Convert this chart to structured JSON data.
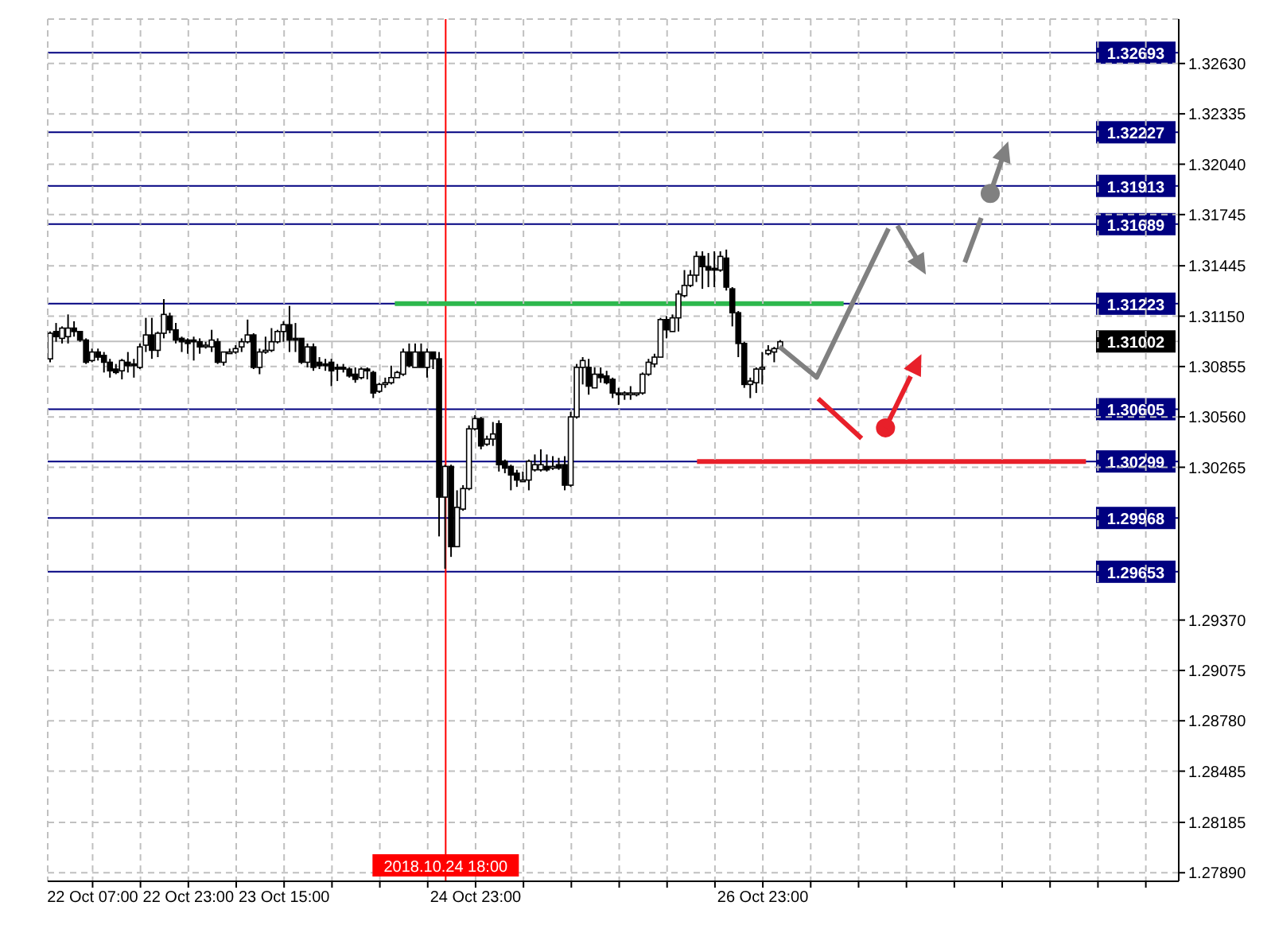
{
  "chart_data": {
    "type": "candlestick",
    "color": "#000000",
    "x": [
      "2018-10-22T00:00",
      "2018-10-22T01:00",
      "2018-10-22T02:00",
      "2018-10-22T03:00",
      "2018-10-22T04:00",
      "2018-10-22T05:00",
      "2018-10-22T06:00",
      "2018-10-22T07:00",
      "2018-10-22T08:00",
      "2018-10-22T09:00",
      "2018-10-22T10:00",
      "2018-10-22T11:00",
      "2018-10-22T12:00",
      "2018-10-22T13:00",
      "2018-10-22T14:00",
      "2018-10-22T15:00",
      "2018-10-22T16:00",
      "2018-10-22T17:00",
      "2018-10-22T18:00",
      "2018-10-22T19:00",
      "2018-10-22T20:00",
      "2018-10-22T21:00",
      "2018-10-22T22:00",
      "2018-10-22T23:00",
      "2018-10-23T00:00",
      "2018-10-23T01:00",
      "2018-10-23T02:00",
      "2018-10-23T03:00",
      "2018-10-23T04:00",
      "2018-10-23T05:00",
      "2018-10-23T06:00",
      "2018-10-23T07:00",
      "2018-10-23T08:00",
      "2018-10-23T09:00",
      "2018-10-23T10:00",
      "2018-10-23T11:00",
      "2018-10-23T12:00",
      "2018-10-23T13:00",
      "2018-10-23T14:00",
      "2018-10-23T15:00",
      "2018-10-23T16:00",
      "2018-10-23T17:00",
      "2018-10-23T18:00",
      "2018-10-23T19:00",
      "2018-10-23T20:00",
      "2018-10-23T21:00",
      "2018-10-23T22:00",
      "2018-10-23T23:00",
      "2018-10-24T00:00",
      "2018-10-24T01:00",
      "2018-10-24T02:00",
      "2018-10-24T03:00",
      "2018-10-24T04:00",
      "2018-10-24T05:00",
      "2018-10-24T06:00",
      "2018-10-24T07:00",
      "2018-10-24T08:00",
      "2018-10-24T09:00",
      "2018-10-24T10:00",
      "2018-10-24T11:00",
      "2018-10-24T12:00",
      "2018-10-24T13:00",
      "2018-10-24T14:00",
      "2018-10-24T15:00",
      "2018-10-24T16:00",
      "2018-10-24T17:00",
      "2018-10-24T18:00",
      "2018-10-24T19:00",
      "2018-10-24T20:00",
      "2018-10-24T21:00",
      "2018-10-24T22:00",
      "2018-10-24T23:00",
      "2018-10-25T00:00",
      "2018-10-25T01:00",
      "2018-10-25T02:00",
      "2018-10-25T03:00",
      "2018-10-25T04:00",
      "2018-10-25T05:00",
      "2018-10-25T06:00",
      "2018-10-25T07:00",
      "2018-10-25T08:00",
      "2018-10-25T09:00",
      "2018-10-25T10:00",
      "2018-10-25T11:00",
      "2018-10-25T12:00",
      "2018-10-25T13:00",
      "2018-10-25T14:00",
      "2018-10-25T15:00",
      "2018-10-25T16:00",
      "2018-10-25T17:00",
      "2018-10-25T18:00",
      "2018-10-25T19:00",
      "2018-10-25T20:00",
      "2018-10-25T21:00",
      "2018-10-25T22:00",
      "2018-10-25T23:00",
      "2018-10-26T00:00",
      "2018-10-26T01:00",
      "2018-10-26T02:00",
      "2018-10-26T03:00",
      "2018-10-26T04:00",
      "2018-10-26T05:00",
      "2018-10-26T06:00",
      "2018-10-26T07:00",
      "2018-10-26T08:00",
      "2018-10-26T09:00",
      "2018-10-26T10:00",
      "2018-10-26T11:00",
      "2018-10-26T12:00",
      "2018-10-26T13:00",
      "2018-10-26T14:00",
      "2018-10-26T15:00",
      "2018-10-26T16:00",
      "2018-10-26T17:00",
      "2018-10-26T18:00",
      "2018-10-26T19:00",
      "2018-10-26T20:00",
      "2018-10-26T21:00",
      "2018-10-26T22:00",
      "2018-10-26T23:00",
      "2018-10-27T00:00",
      "2018-10-27T01:00",
      "2018-10-27T02:00"
    ],
    "ohlc": [
      [
        1.309,
        1.3106,
        1.3088,
        1.3105
      ],
      [
        1.3106,
        1.3111,
        1.31,
        1.3103
      ],
      [
        1.3102,
        1.3109,
        1.3099,
        1.3108
      ],
      [
        1.3103,
        1.3116,
        1.3099,
        1.3108
      ],
      [
        1.3108,
        1.3112,
        1.3103,
        1.3106
      ],
      [
        1.3106,
        1.3106,
        1.31,
        1.3101
      ],
      [
        1.3101,
        1.3102,
        1.3087,
        1.3088
      ],
      [
        1.3089,
        1.3096,
        1.3088,
        1.3094
      ],
      [
        1.3094,
        1.3096,
        1.3089,
        1.3091
      ],
      [
        1.3092,
        1.3094,
        1.3082,
        1.3088
      ],
      [
        1.3088,
        1.309,
        1.3079,
        1.3083
      ],
      [
        1.3084,
        1.3087,
        1.3081,
        1.3082
      ],
      [
        1.3083,
        1.309,
        1.3078,
        1.3089
      ],
      [
        1.3088,
        1.3094,
        1.3082,
        1.3086
      ],
      [
        1.3087,
        1.309,
        1.3079,
        1.3086
      ],
      [
        1.3085,
        1.3099,
        1.3084,
        1.3097
      ],
      [
        1.3098,
        1.3114,
        1.3094,
        1.3104
      ],
      [
        1.3104,
        1.3114,
        1.309,
        1.3095
      ],
      [
        1.3095,
        1.3106,
        1.3091,
        1.3105
      ],
      [
        1.3105,
        1.3125,
        1.3102,
        1.3116
      ],
      [
        1.3115,
        1.3117,
        1.3105,
        1.3107
      ],
      [
        1.3107,
        1.3111,
        1.3099,
        1.3101
      ],
      [
        1.3102,
        1.3103,
        1.3094,
        1.31
      ],
      [
        1.3101,
        1.3102,
        1.3093,
        1.3099
      ],
      [
        1.3101,
        1.3103,
        1.3089,
        1.31
      ],
      [
        1.31,
        1.3102,
        1.3093,
        1.3097
      ],
      [
        1.3098,
        1.31,
        1.3096,
        1.3098
      ],
      [
        1.3097,
        1.3107,
        1.3094,
        1.3101
      ],
      [
        1.31,
        1.3102,
        1.3087,
        1.3088
      ],
      [
        1.3088,
        1.3094,
        1.3086,
        1.3094
      ],
      [
        1.3094,
        1.3096,
        1.3093,
        1.3094
      ],
      [
        1.3094,
        1.3098,
        1.3093,
        1.3096
      ],
      [
        1.3097,
        1.3102,
        1.3094,
        1.31
      ],
      [
        1.31,
        1.3113,
        1.3099,
        1.3104
      ],
      [
        1.3104,
        1.3105,
        1.3084,
        1.3085
      ],
      [
        1.3085,
        1.3096,
        1.3081,
        1.3094
      ],
      [
        1.3094,
        1.3103,
        1.3093,
        1.3095
      ],
      [
        1.3095,
        1.3108,
        1.3094,
        1.31
      ],
      [
        1.31,
        1.3107,
        1.3099,
        1.3106
      ],
      [
        1.3106,
        1.3112,
        1.31,
        1.311
      ],
      [
        1.311,
        1.3121,
        1.3094,
        1.3101
      ],
      [
        1.3102,
        1.3111,
        1.3094,
        1.3101
      ],
      [
        1.3102,
        1.3102,
        1.3087,
        1.3088
      ],
      [
        1.3088,
        1.3099,
        1.3085,
        1.3097
      ],
      [
        1.3097,
        1.3099,
        1.3083,
        1.3085
      ],
      [
        1.3088,
        1.3091,
        1.3084,
        1.3086
      ],
      [
        1.3087,
        1.309,
        1.3083,
        1.3086
      ],
      [
        1.3088,
        1.309,
        1.3074,
        1.3083
      ],
      [
        1.3085,
        1.3087,
        1.3077,
        1.3084
      ],
      [
        1.3085,
        1.3087,
        1.3082,
        1.3084
      ],
      [
        1.3084,
        1.3085,
        1.3079,
        1.308
      ],
      [
        1.3081,
        1.3085,
        1.3076,
        1.3078
      ],
      [
        1.3079,
        1.3085,
        1.3078,
        1.3084
      ],
      [
        1.3084,
        1.3085,
        1.3078,
        1.3083
      ],
      [
        1.3082,
        1.3083,
        1.3067,
        1.307
      ],
      [
        1.3071,
        1.3076,
        1.307,
        1.3075
      ],
      [
        1.3075,
        1.3079,
        1.3073,
        1.3076
      ],
      [
        1.3076,
        1.3086,
        1.3075,
        1.3079
      ],
      [
        1.3079,
        1.3083,
        1.3079,
        1.3082
      ],
      [
        1.3081,
        1.3096,
        1.308,
        1.3094
      ],
      [
        1.3094,
        1.3099,
        1.3085,
        1.3086
      ],
      [
        1.3085,
        1.3099,
        1.3085,
        1.3094
      ],
      [
        1.3094,
        1.3099,
        1.3085,
        1.3085
      ],
      [
        1.3085,
        1.3096,
        1.3079,
        1.3094
      ],
      [
        1.3094,
        1.3094,
        1.3084,
        1.309
      ],
      [
        1.309,
        1.3094,
        1.2986,
        1.3009
      ],
      [
        1.3009,
        1.3028,
        1.2967,
        1.3027
      ],
      [
        1.3027,
        1.3028,
        1.2974,
        1.298
      ],
      [
        1.298,
        1.3013,
        1.298,
        1.3003
      ],
      [
        1.3002,
        1.3016,
        1.3001,
        1.3014
      ],
      [
        1.3014,
        1.3051,
        1.3013,
        1.3049
      ],
      [
        1.3049,
        1.3057,
        1.3048,
        1.3055
      ],
      [
        1.3055,
        1.3056,
        1.3037,
        1.3039
      ],
      [
        1.304,
        1.3045,
        1.3039,
        1.3043
      ],
      [
        1.3043,
        1.3053,
        1.3039,
        1.3046
      ],
      [
        1.3052,
        1.3054,
        1.3024,
        1.3028
      ],
      [
        1.303,
        1.3031,
        1.3023,
        1.3026
      ],
      [
        1.3027,
        1.3028,
        1.3013,
        1.3022
      ],
      [
        1.3023,
        1.3025,
        1.3015,
        1.3019
      ],
      [
        1.3019,
        1.3024,
        1.3018,
        1.3019
      ],
      [
        1.3019,
        1.3031,
        1.3013,
        1.303
      ],
      [
        1.3025,
        1.3034,
        1.3024,
        1.3028
      ],
      [
        1.3025,
        1.3037,
        1.3024,
        1.3028
      ],
      [
        1.3027,
        1.3034,
        1.3024,
        1.3025
      ],
      [
        1.3026,
        1.3033,
        1.3025,
        1.3027
      ],
      [
        1.3028,
        1.3032,
        1.3025,
        1.3026
      ],
      [
        1.3028,
        1.3033,
        1.3013,
        1.3016
      ],
      [
        1.3016,
        1.3059,
        1.3015,
        1.3056
      ],
      [
        1.3056,
        1.3087,
        1.3055,
        1.3085
      ],
      [
        1.3085,
        1.3091,
        1.3075,
        1.3089
      ],
      [
        1.3085,
        1.309,
        1.3069,
        1.3074
      ],
      [
        1.3073,
        1.3085,
        1.3073,
        1.3081
      ],
      [
        1.3081,
        1.3085,
        1.3076,
        1.3079
      ],
      [
        1.308,
        1.3083,
        1.3075,
        1.3076
      ],
      [
        1.3078,
        1.3079,
        1.3067,
        1.307
      ],
      [
        1.307,
        1.3073,
        1.3063,
        1.3069
      ],
      [
        1.3069,
        1.3071,
        1.3066,
        1.307
      ],
      [
        1.3069,
        1.3074,
        1.3066,
        1.307
      ],
      [
        1.3069,
        1.307,
        1.3068,
        1.307
      ],
      [
        1.307,
        1.3082,
        1.3069,
        1.3081
      ],
      [
        1.3081,
        1.309,
        1.308,
        1.3088
      ],
      [
        1.3087,
        1.3093,
        1.3085,
        1.3091
      ],
      [
        1.3091,
        1.3114,
        1.3091,
        1.3113
      ],
      [
        1.3113,
        1.3115,
        1.3102,
        1.3107
      ],
      [
        1.3106,
        1.3116,
        1.3106,
        1.3114
      ],
      [
        1.3114,
        1.313,
        1.3106,
        1.3128
      ],
      [
        1.3127,
        1.3142,
        1.3126,
        1.3133
      ],
      [
        1.3133,
        1.3142,
        1.3132,
        1.3139
      ],
      [
        1.3139,
        1.3153,
        1.3135,
        1.315
      ],
      [
        1.315,
        1.3153,
        1.3131,
        1.3144
      ],
      [
        1.3144,
        1.3152,
        1.3132,
        1.3142
      ],
      [
        1.3143,
        1.3153,
        1.3132,
        1.3142
      ],
      [
        1.3142,
        1.3153,
        1.3141,
        1.315
      ],
      [
        1.3149,
        1.3154,
        1.313,
        1.3132
      ],
      [
        1.3131,
        1.3132,
        1.3109,
        1.3117
      ],
      [
        1.3117,
        1.3118,
        1.3091,
        1.3099
      ],
      [
        1.3099,
        1.31,
        1.3073,
        1.3075
      ],
      [
        1.3075,
        1.3079,
        1.3067,
        1.3077
      ],
      [
        1.3076,
        1.3085,
        1.307,
        1.3084
      ],
      [
        1.3084,
        1.3094,
        1.3075,
        1.3085
      ],
      [
        1.3093,
        1.3098,
        1.3092,
        1.3095
      ],
      [
        1.3094,
        1.3097,
        1.3088,
        1.3096
      ],
      [
        1.3096,
        1.3101,
        1.3096,
        1.31
      ]
    ],
    "xlim": [
      "2018-10-21T23:30",
      "2018-10-29T20:30"
    ],
    "xticks": [
      {
        "value": "2018-10-22T07:00",
        "label": "22 Oct 07:00"
      },
      {
        "value": "2018-10-22T15:00",
        "label": null
      },
      {
        "value": "2018-10-22T23:00",
        "label": "22 Oct 23:00"
      },
      {
        "value": "2018-10-23T07:00",
        "label": null
      },
      {
        "value": "2018-10-23T15:00",
        "label": "23 Oct 15:00"
      },
      {
        "value": "2018-10-23T23:00",
        "label": null
      },
      {
        "value": "2018-10-24T07:00",
        "label": null
      },
      {
        "value": "2018-10-24T15:00",
        "label": null
      },
      {
        "value": "2018-10-24T23:00",
        "label": "24 Oct 23:00"
      },
      {
        "value": "2018-10-25T07:00",
        "label": null
      },
      {
        "value": "2018-10-25T15:00",
        "label": null
      },
      {
        "value": "2018-10-25T23:00",
        "label": null
      },
      {
        "value": "2018-10-26T07:00",
        "label": null
      },
      {
        "value": "2018-10-26T15:00",
        "label": null
      },
      {
        "value": "2018-10-26T23:00",
        "label": "26 Oct 23:00"
      },
      {
        "value": "2018-10-27T07:00",
        "label": null
      },
      {
        "value": "2018-10-27T15:00",
        "label": null
      },
      {
        "value": "2018-10-27T23:00",
        "label": null
      },
      {
        "value": "2018-10-28T07:00",
        "label": null
      },
      {
        "value": "2018-10-28T15:00",
        "label": null
      },
      {
        "value": "2018-10-28T23:00",
        "label": null
      },
      {
        "value": "2018-10-29T07:00",
        "label": null
      },
      {
        "value": "2018-10-29T15:00",
        "label": null
      }
    ],
    "ylim": [
      1.2784,
      1.3289
    ],
    "yticks": [
      {
        "value": 1.2789,
        "label": "1.27890"
      },
      {
        "value": 1.28185,
        "label": "1.28185"
      },
      {
        "value": 1.28485,
        "label": "1.28485"
      },
      {
        "value": 1.2878,
        "label": "1.28780"
      },
      {
        "value": 1.29075,
        "label": "1.29075"
      },
      {
        "value": 1.2937,
        "label": "1.29370"
      },
      {
        "value": 1.30265,
        "label": "1.30265"
      },
      {
        "value": 1.3056,
        "label": "1.30560"
      },
      {
        "value": 1.30855,
        "label": "1.30855"
      },
      {
        "value": 1.3115,
        "label": "1.31150"
      },
      {
        "value": 1.31445,
        "label": "1.31445"
      },
      {
        "value": 1.31745,
        "label": "1.31745"
      },
      {
        "value": 1.3204,
        "label": "1.32040"
      },
      {
        "value": 1.32335,
        "label": "1.32335"
      },
      {
        "value": 1.3263,
        "label": "1.32630"
      }
    ],
    "grid": true,
    "ref_lines": [
      {
        "axis": "y",
        "value": 1.32693,
        "label": "1.32693",
        "color": "#000080"
      },
      {
        "axis": "y",
        "value": 1.32227,
        "label": "1.32227",
        "color": "#000080"
      },
      {
        "axis": "y",
        "value": 1.31913,
        "label": "1.31913",
        "color": "#000080"
      },
      {
        "axis": "y",
        "value": 1.31689,
        "label": "1.31689",
        "color": "#000080"
      },
      {
        "axis": "y",
        "value": 1.31223,
        "label": "1.31223",
        "color": "#000080"
      },
      {
        "axis": "y",
        "value": 1.31002,
        "label": "1.31002",
        "color": "#c0c0c0"
      },
      {
        "axis": "y",
        "value": 1.30605,
        "label": "1.30605",
        "color": "#000080"
      },
      {
        "axis": "y",
        "value": 1.30299,
        "label": "1.30299",
        "color": "#000080"
      },
      {
        "axis": "y",
        "value": 1.29968,
        "label": "1.29968",
        "color": "#000080"
      },
      {
        "axis": "y",
        "value": 1.29653,
        "label": "1.29653",
        "color": "#000080"
      },
      {
        "axis": "x",
        "value": "2018-10-24T18:00",
        "label": "2018.10.24 18:00",
        "color": "#ff0000"
      },
      {
        "axis": "y",
        "value": 1.31223,
        "color": "#2db84d"
      },
      {
        "axis": "y",
        "value": 1.30299,
        "color": "#e8202a"
      }
    ]
  }
}
